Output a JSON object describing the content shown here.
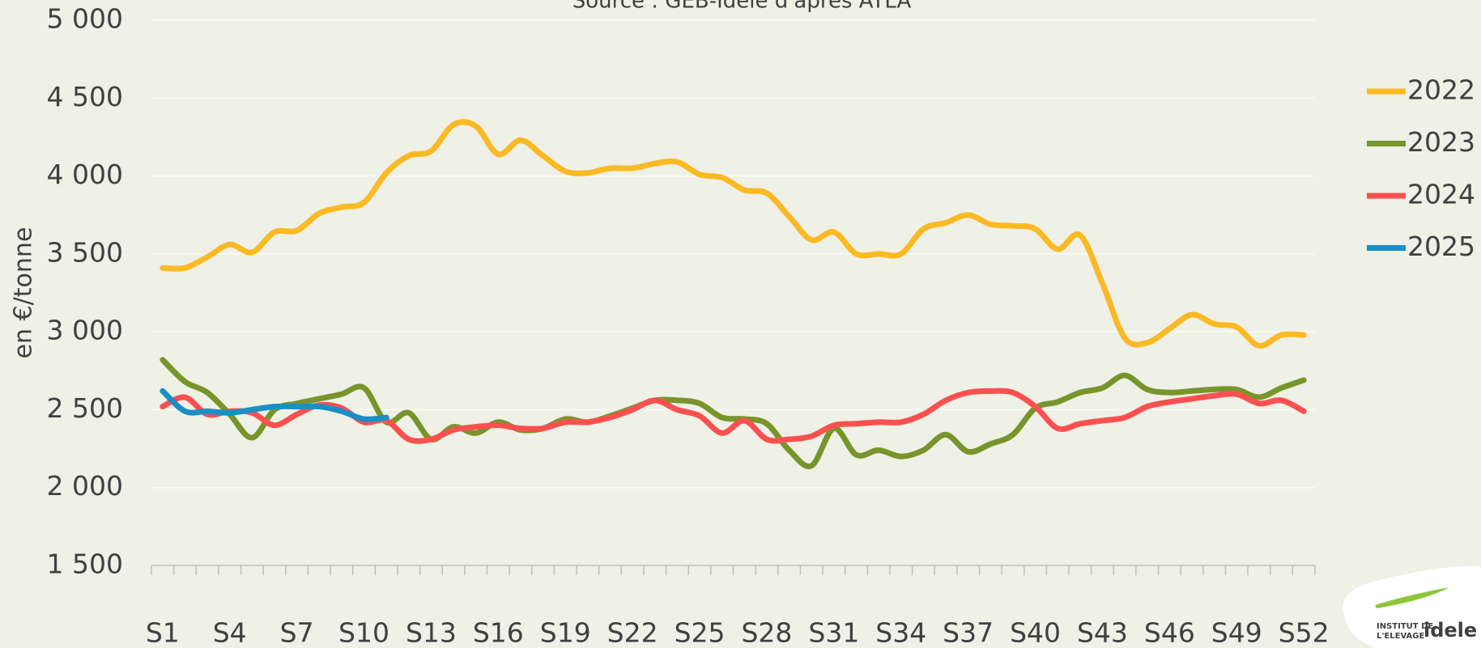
{
  "chart_data": {
    "type": "line",
    "title": "Source : GEB-Idele d'après ATLA",
    "y_label": "en €/tonne",
    "categories": [
      "S1",
      null,
      null,
      "S4",
      null,
      null,
      "S7",
      null,
      null,
      "S10",
      null,
      null,
      "S13",
      null,
      null,
      "S16",
      null,
      null,
      "S19",
      null,
      null,
      "S22",
      null,
      null,
      "S25",
      null,
      null,
      "S28",
      null,
      null,
      "S31",
      null,
      null,
      "S34",
      null,
      null,
      "S37",
      null,
      null,
      "S40",
      null,
      null,
      "S43",
      null,
      null,
      "S46",
      null,
      null,
      "S49",
      null,
      null,
      "S52"
    ],
    "ylim": [
      1500,
      5000
    ],
    "yticks": [
      {
        "value": 1500,
        "label": "1 500"
      },
      {
        "value": 2000,
        "label": "2 000"
      },
      {
        "value": 2500,
        "label": "2 500"
      },
      {
        "value": 3000,
        "label": "3 000"
      },
      {
        "value": 3500,
        "label": "3 500"
      },
      {
        "value": 4000,
        "label": "4 000"
      },
      {
        "value": 4500,
        "label": "4 500"
      },
      {
        "value": 5000,
        "label": "5 000"
      }
    ],
    "grid": true,
    "legend": "right",
    "series": [
      {
        "name": "2022",
        "color": "#fbb923",
        "values": [
          3410,
          3410,
          3480,
          3560,
          3510,
          3640,
          3650,
          3760,
          3800,
          3830,
          4020,
          4130,
          4160,
          4330,
          4320,
          4140,
          4230,
          4130,
          4030,
          4020,
          4050,
          4050,
          4080,
          4090,
          4010,
          3990,
          3910,
          3890,
          3740,
          3590,
          3640,
          3500,
          3500,
          3500,
          3660,
          3700,
          3750,
          3690,
          3680,
          3660,
          3530,
          3620,
          3310,
          2960,
          2930,
          3020,
          3110,
          3050,
          3030,
          2910,
          2980,
          2980
        ]
      },
      {
        "name": "2023",
        "color": "#77952b",
        "values": [
          2820,
          2680,
          2610,
          2470,
          2320,
          2500,
          2540,
          2570,
          2600,
          2640,
          2420,
          2480,
          2310,
          2390,
          2350,
          2420,
          2370,
          2380,
          2440,
          2420,
          2460,
          2510,
          2560,
          2560,
          2540,
          2450,
          2440,
          2410,
          2240,
          2140,
          2380,
          2210,
          2240,
          2200,
          2240,
          2340,
          2230,
          2280,
          2340,
          2510,
          2550,
          2610,
          2640,
          2720,
          2630,
          2610,
          2620,
          2630,
          2630,
          2580,
          2640,
          2690
        ]
      },
      {
        "name": "2024",
        "color": "#fb5050",
        "values": [
          2520,
          2580,
          2470,
          2490,
          2480,
          2400,
          2470,
          2530,
          2510,
          2420,
          2430,
          2310,
          2310,
          2370,
          2390,
          2400,
          2380,
          2380,
          2420,
          2420,
          2450,
          2500,
          2560,
          2500,
          2460,
          2350,
          2430,
          2310,
          2310,
          2330,
          2400,
          2410,
          2420,
          2420,
          2470,
          2560,
          2610,
          2620,
          2610,
          2520,
          2380,
          2410,
          2430,
          2450,
          2520,
          2550,
          2570,
          2590,
          2600,
          2540,
          2560,
          2490
        ]
      },
      {
        "name": "2025",
        "color": "#1a8fc6",
        "values": [
          2620,
          2490,
          2490,
          2480,
          2500,
          2520,
          2520,
          2520,
          2490,
          2440,
          2450,
          null,
          null,
          null,
          null,
          null,
          null,
          null,
          null,
          null,
          null,
          null,
          null,
          null,
          null,
          null,
          null,
          null,
          null,
          null,
          null,
          null,
          null,
          null,
          null,
          null,
          null,
          null,
          null,
          null,
          null,
          null,
          null,
          null,
          null,
          null,
          null,
          null,
          null,
          null,
          null,
          null
        ]
      }
    ]
  },
  "logo": {
    "line1": "INSTITUT DE",
    "line2": "L'ELEVAGE",
    "brand": "idele"
  }
}
